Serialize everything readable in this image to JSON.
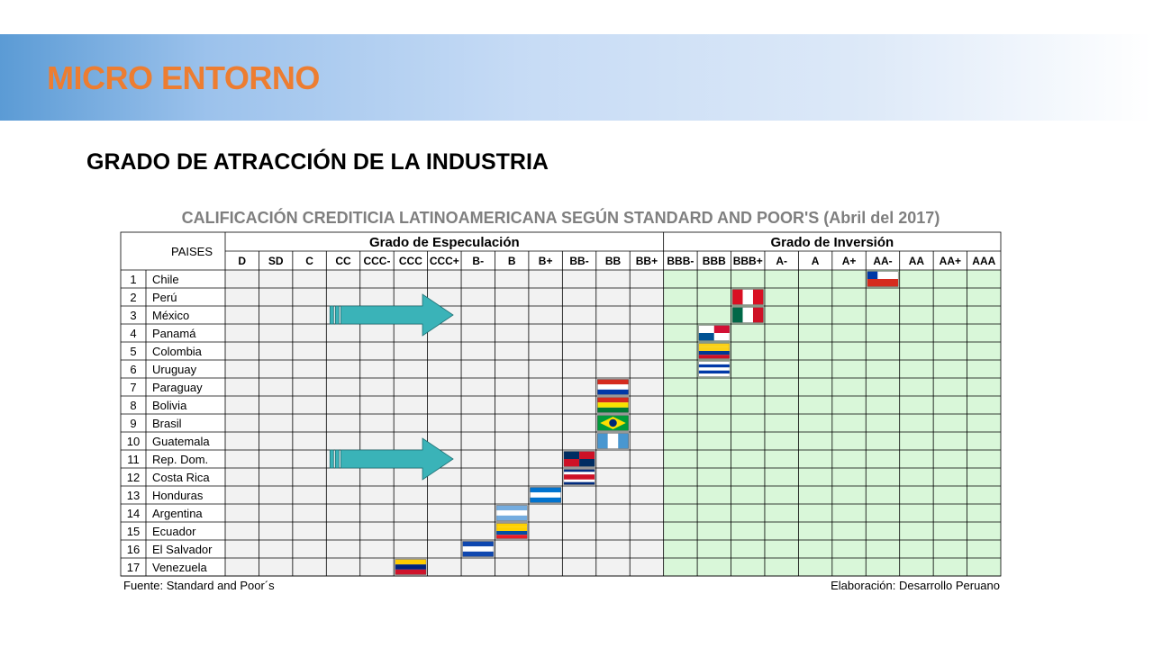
{
  "header": {
    "title": "MICRO ENTORNO"
  },
  "subtitle": "GRADO DE ATRACCIÓN DE LA INDUSTRIA",
  "table": {
    "title": "CALIFICACIÓN CREDITICIA LATINOAMERICANA SEGÚN STANDARD AND POOR'S (Abril del 2017)",
    "country_header": "PAISES",
    "groups": [
      "Grado de Especulación",
      "Grado de Inversión"
    ],
    "ratings": [
      "D",
      "SD",
      "C",
      "CC",
      "CCC-",
      "CCC",
      "CCC+",
      "B-",
      "B",
      "B+",
      "BB-",
      "BB",
      "BB+",
      "BBB-",
      "BBB",
      "BBB+",
      "A-",
      "A",
      "A+",
      "AA-",
      "AA",
      "AA+",
      "AAA"
    ],
    "speculative_count": 13,
    "countries": [
      {
        "num": "1",
        "name": "Chile",
        "rating": "AA-"
      },
      {
        "num": "2",
        "name": "Perú",
        "rating": "BBB+"
      },
      {
        "num": "3",
        "name": "México",
        "rating": "BBB+"
      },
      {
        "num": "4",
        "name": "Panamá",
        "rating": "BBB"
      },
      {
        "num": "5",
        "name": "Colombia",
        "rating": "BBB"
      },
      {
        "num": "6",
        "name": "Uruguay",
        "rating": "BBB"
      },
      {
        "num": "7",
        "name": "Paraguay",
        "rating": "BB"
      },
      {
        "num": "8",
        "name": "Bolivia",
        "rating": "BB"
      },
      {
        "num": "9",
        "name": "Brasil",
        "rating": "BB"
      },
      {
        "num": "10",
        "name": "Guatemala",
        "rating": "BB"
      },
      {
        "num": "11",
        "name": "Rep. Dom.",
        "rating": "BB-"
      },
      {
        "num": "12",
        "name": "Costa Rica",
        "rating": "BB-"
      },
      {
        "num": "13",
        "name": "Honduras",
        "rating": "B+"
      },
      {
        "num": "14",
        "name": "Argentina",
        "rating": "B"
      },
      {
        "num": "15",
        "name": "Ecuador",
        "rating": "B"
      },
      {
        "num": "16",
        "name": "El Salvador",
        "rating": "B-"
      },
      {
        "num": "17",
        "name": "Venezuela",
        "rating": "CCC"
      }
    ],
    "arrows": [
      {
        "row": 3,
        "from": "CC",
        "to": "CCC+"
      },
      {
        "row": 11,
        "from": "CC",
        "to": "CCC+"
      }
    ],
    "colors": {
      "investment_bg": "#d9f7d9",
      "speculative_bg": "#f2f2f2",
      "arrow": "#3ab3b8",
      "grid": "#000000"
    }
  },
  "footer": {
    "source": "Fuente: Standard and Poor´s",
    "credit": "Elaboración: Desarrollo Peruano"
  }
}
